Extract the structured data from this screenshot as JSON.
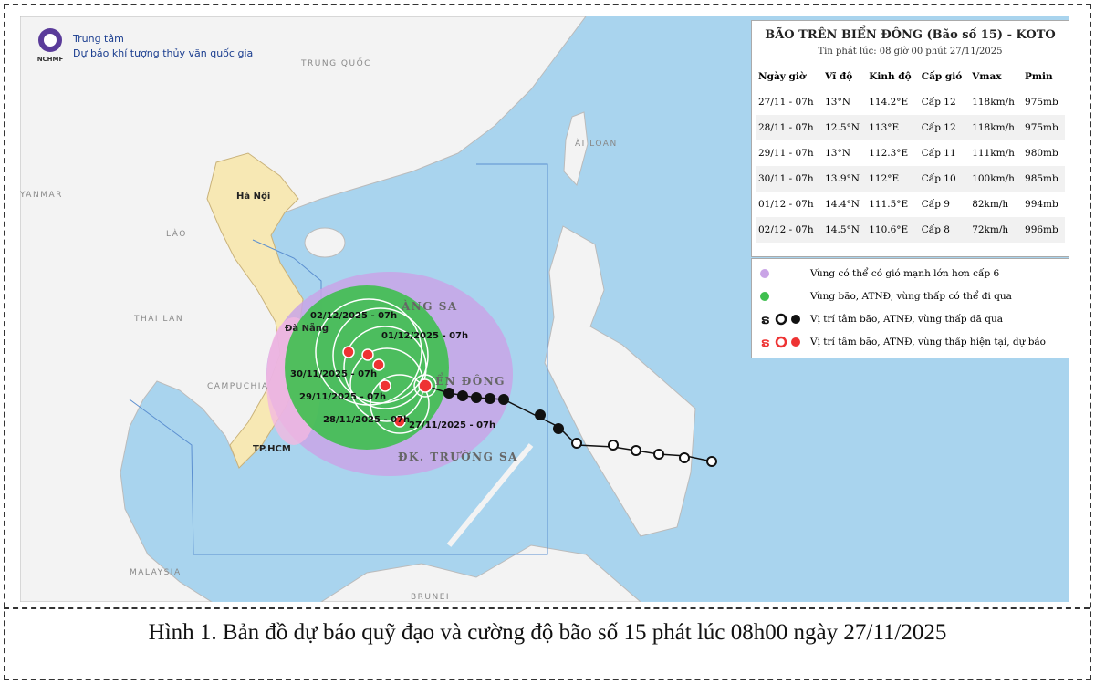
{
  "header": {
    "logo": "NCHMF",
    "line1": "Trung tâm",
    "line2": "Dự báo khí tượng thủy văn quốc gia"
  },
  "map_labels": [
    "TRUNG QUỐC",
    "ÀI LOAN",
    "YANMAR",
    "Hà Nội",
    "LÀO",
    "THÁI LAN",
    "CAMPUCHIA",
    "TP.HCM",
    "Đà Nẵng",
    "ÀNG SA",
    "ỂN ĐÔNG",
    "ĐK. TRƯỜNG SA",
    "MALAYSIA",
    "BRUNEI"
  ],
  "track_labels": [
    "02/12/2025 - 07h",
    "01/12/2025 - 07h",
    "30/11/2025 - 07h",
    "29/11/2025 - 07h",
    "28/11/2025 - 07h",
    "27/11/2025 - 07h"
  ],
  "info_panel": {
    "title": "BÃO TRÊN BIỂN ĐÔNG (Bão số 15) - KOTO",
    "issued": "Tin phát lúc: 08 giờ 00 phút 27/11/2025",
    "columns": [
      "Ngày giờ",
      "Vĩ độ",
      "Kinh độ",
      "Cấp gió",
      "Vmax",
      "Pmin"
    ],
    "rows": [
      [
        "27/11 - 07h",
        "13°N",
        "114.2°E",
        "Cấp 12",
        "118km/h",
        "975mb"
      ],
      [
        "28/11 - 07h",
        "12.5°N",
        "113°E",
        "Cấp 12",
        "118km/h",
        "975mb"
      ],
      [
        "29/11 - 07h",
        "13°N",
        "112.3°E",
        "Cấp 11",
        "111km/h",
        "980mb"
      ],
      [
        "30/11 - 07h",
        "13.9°N",
        "112°E",
        "Cấp 10",
        "100km/h",
        "985mb"
      ],
      [
        "01/12 - 07h",
        "14.4°N",
        "111.5°E",
        "Cấp 9",
        "82km/h",
        "994mb"
      ],
      [
        "02/12 - 07h",
        "14.5°N",
        "110.6°E",
        "Cấp 8",
        "72km/h",
        "996mb"
      ]
    ]
  },
  "legend": [
    "Vùng có thể có gió mạnh lớn hơn cấp 6",
    "Vùng bão, ATNĐ, vùng thấp có thể đi qua",
    "Vị trí tâm bão, ATNĐ, vùng thấp đã qua",
    "Vị trí tâm bão, ATNĐ, vùng thấp hiện tại, dự báo"
  ],
  "caption": "Hình 1. Bản đồ dự báo quỹ đạo và cường độ bão số 15 phát lúc 08h00 ngày 27/11/2025"
}
